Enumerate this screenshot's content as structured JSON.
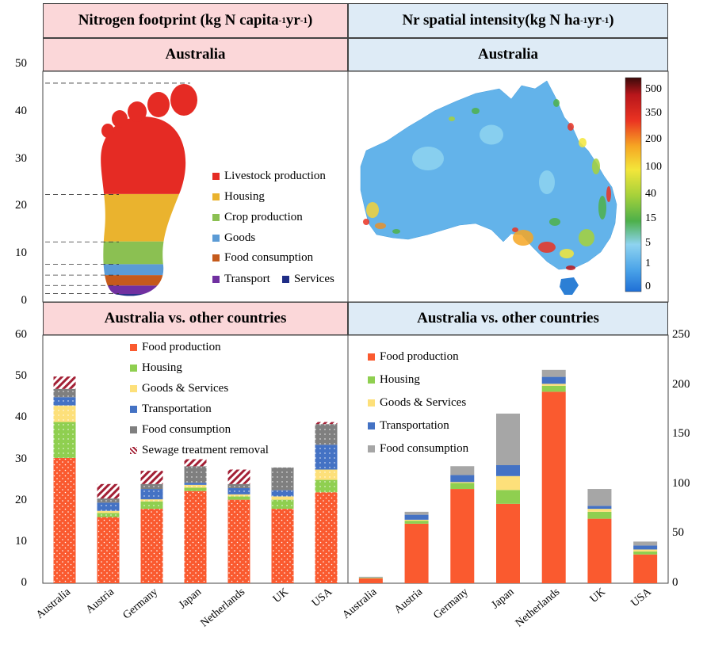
{
  "headers": {
    "left_title": "Nitrogen footprint (kg N capita",
    "left_title_sup1": "-1",
    "left_title_mid": " yr",
    "left_title_sup2": "-1",
    "left_title_end": ")",
    "right_title": "Nr spatial intensity(kg N ha",
    "right_title_sup1": "-1",
    "right_title_mid": " yr",
    "right_title_sup2": "-1",
    "right_title_end": ")",
    "left_sub": "Australia",
    "right_sub": "Australia",
    "left_bottom": "Australia vs. other countries",
    "right_bottom": "Australia vs. other countries"
  },
  "colors": {
    "food_production": "#fa5a2f",
    "housing": "#8fcf50",
    "goods": "#fde07a",
    "transportation": "#4472c4",
    "food_consumption": "#7f7f7f",
    "food_consumption_light": "#a6a6a6",
    "sewage": "#a32035",
    "livestock": "#e52b24",
    "housing_foot": "#eab32e",
    "crop": "#8bc052",
    "goods_foot": "#5b9bd5",
    "food_cons_foot": "#c55a1b",
    "transport_foot": "#7030a0",
    "services_foot": "#1f2d86"
  },
  "footprint_legend": [
    "Livestock production",
    "Housing",
    "Crop production",
    "Goods",
    "Food consumption",
    "Transport",
    "Services"
  ],
  "colorbar_labels": [
    "500",
    "350",
    "200",
    "100",
    "40",
    "15",
    "5",
    "1",
    "0"
  ],
  "chart_data": [
    {
      "type": "bar",
      "title": "Australia",
      "ylim": [
        0,
        50
      ],
      "yticks": [
        "0",
        "10",
        "20",
        "30",
        "40",
        "50"
      ],
      "categories": [
        "Australia"
      ],
      "series": [
        {
          "name": "Services",
          "values": [
            1.5
          ]
        },
        {
          "name": "Transport",
          "values": [
            1.8
          ]
        },
        {
          "name": "Food consumption",
          "values": [
            2.2
          ]
        },
        {
          "name": "Goods",
          "values": [
            2.3
          ]
        },
        {
          "name": "Crop production",
          "values": [
            4.8
          ]
        },
        {
          "name": "Housing",
          "values": [
            10
          ]
        },
        {
          "name": "Livestock production",
          "values": [
            23.5
          ]
        }
      ],
      "boundaries": [
        1.6,
        3.3,
        5.5,
        7.8,
        12.5,
        22.5,
        46
      ]
    },
    {
      "type": "bar",
      "title": "Australia vs. other countries",
      "ylim": [
        0,
        60
      ],
      "yticks": [
        "0",
        "10",
        "20",
        "30",
        "40",
        "50",
        "60"
      ],
      "categories": [
        "Australia",
        "Austria",
        "Germany",
        "Japan",
        "Netherlands",
        "UK",
        "USA"
      ],
      "series": [
        {
          "name": "Food production",
          "values": [
            30.3,
            16,
            18,
            22.3,
            20.2,
            18,
            22
          ]
        },
        {
          "name": "Housing",
          "values": [
            8.7,
            1,
            1.8,
            0.8,
            0.8,
            2.2,
            3
          ]
        },
        {
          "name": "Goods & Services",
          "values": [
            4,
            0.5,
            0.5,
            0.7,
            0.5,
            0.8,
            2.5
          ]
        },
        {
          "name": "Transportation",
          "values": [
            2,
            2,
            2.5,
            0.5,
            1.5,
            1.5,
            6
          ]
        },
        {
          "name": "Food consumption",
          "values": [
            2,
            1,
            1.2,
            4,
            1,
            5.5,
            5
          ]
        },
        {
          "name": "Sewage treatment removal",
          "values": [
            3,
            3.5,
            3.2,
            1.7,
            3.5,
            0,
            0.5
          ]
        }
      ]
    },
    {
      "type": "bar",
      "title": "Australia vs. other countries",
      "ylim": [
        0,
        250
      ],
      "yticks": [
        "0",
        "50",
        "100",
        "150",
        "200",
        "250"
      ],
      "categories": [
        "Australia",
        "Austria",
        "Germany",
        "Japan",
        "Netherlands",
        "UK",
        "USA"
      ],
      "series": [
        {
          "name": "Food production",
          "values": [
            5,
            60,
            95,
            80,
            193,
            65,
            29
          ]
        },
        {
          "name": "Housing",
          "values": [
            0.5,
            3,
            6,
            14,
            6,
            7,
            3
          ]
        },
        {
          "name": "Goods & Services",
          "values": [
            0.3,
            1,
            1,
            14,
            2,
            3,
            2
          ]
        },
        {
          "name": "Transportation",
          "values": [
            0.2,
            5,
            7,
            11,
            7,
            3,
            4
          ]
        },
        {
          "name": "Food consumption",
          "values": [
            0.5,
            3,
            9,
            52,
            7,
            17,
            4
          ]
        }
      ]
    }
  ]
}
